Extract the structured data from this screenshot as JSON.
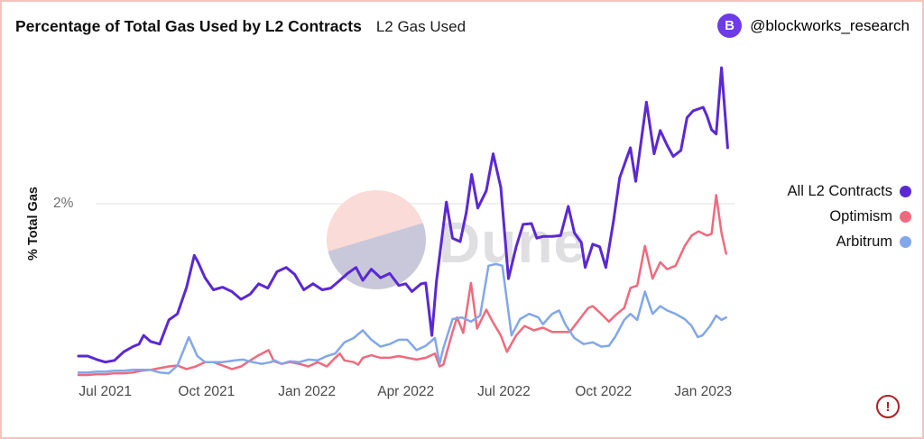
{
  "header": {
    "title": "Percentage of Total Gas Used by L2 Contracts",
    "subtitle": "L2 Gas Used",
    "attribution": {
      "handle": "@blockworks_research",
      "avatar_letter": "B"
    }
  },
  "watermark": {
    "text": "Dune"
  },
  "footer": {
    "warning_glyph": "!"
  },
  "colors": {
    "all_l2": "#5b28d4",
    "optimism": "#f06a7d",
    "arbitrum": "#82a7ea",
    "grid": "#ececec",
    "border": "#f5c3bd",
    "avatar": "#6d3be8",
    "warning": "#ab1f24",
    "watermark_pink": "#fadbd7",
    "watermark_lavender": "#c9c8da",
    "watermark_text": "#c9c9cd"
  },
  "chart_data": {
    "type": "line",
    "title": "Percentage of Total Gas Used by L2 Contracts",
    "subtitle": "L2 Gas Used",
    "ylabel": "% Total Gas",
    "x_unit": "weeks (Jun 2021 - Jan 2023)",
    "xlim_weeks": [
      0,
      85
    ],
    "ylim": [
      0,
      3.8
    ],
    "grid": "single horizontal gridline at 2%",
    "legend_position": "right",
    "y_ticks": [
      {
        "value": 2,
        "label": "2%"
      }
    ],
    "x_ticks": [
      {
        "label": "Jul 2021",
        "week": 3.5
      },
      {
        "label": "Oct 2021",
        "week": 16.7
      },
      {
        "label": "Jan 2022",
        "week": 29.8
      },
      {
        "label": "Apr 2022",
        "week": 42.7
      },
      {
        "label": "Jul 2022",
        "week": 55.5
      },
      {
        "label": "Oct 2022",
        "week": 68.5
      },
      {
        "label": "Jan 2023",
        "week": 81.5
      }
    ],
    "series": [
      {
        "name": "All L2 Contracts",
        "color": "#5b28d4",
        "points": [
          [
            0,
            0.23
          ],
          [
            1.2,
            0.23
          ],
          [
            2.4,
            0.19
          ],
          [
            3.5,
            0.16
          ],
          [
            4.7,
            0.18
          ],
          [
            5.9,
            0.28
          ],
          [
            7.1,
            0.34
          ],
          [
            7.9,
            0.37
          ],
          [
            8.5,
            0.47
          ],
          [
            9.4,
            0.4
          ],
          [
            10.6,
            0.37
          ],
          [
            11.8,
            0.65
          ],
          [
            12.9,
            0.72
          ],
          [
            14.1,
            1.03
          ],
          [
            15.1,
            1.4
          ],
          [
            15.6,
            1.32
          ],
          [
            16.5,
            1.14
          ],
          [
            17.6,
            1.0
          ],
          [
            18.8,
            1.03
          ],
          [
            20,
            0.98
          ],
          [
            21.2,
            0.89
          ],
          [
            22.4,
            0.95
          ],
          [
            23.5,
            1.07
          ],
          [
            24.7,
            1.02
          ],
          [
            25.9,
            1.21
          ],
          [
            27.1,
            1.26
          ],
          [
            28.2,
            1.18
          ],
          [
            29.4,
            1.0
          ],
          [
            30.6,
            1.07
          ],
          [
            31.8,
            1.0
          ],
          [
            32.9,
            1.02
          ],
          [
            34.1,
            1.11
          ],
          [
            35.1,
            1.19
          ],
          [
            36.2,
            1.26
          ],
          [
            37.1,
            1.11
          ],
          [
            38.2,
            1.24
          ],
          [
            39.4,
            1.14
          ],
          [
            40.6,
            1.19
          ],
          [
            41.8,
            1.05
          ],
          [
            42.7,
            1.07
          ],
          [
            43.5,
            0.98
          ],
          [
            44.7,
            1.07
          ],
          [
            45.3,
            1.08
          ],
          [
            46.1,
            0.47
          ],
          [
            46.7,
            1.1
          ],
          [
            48,
            2.02
          ],
          [
            48.8,
            1.6
          ],
          [
            49.8,
            1.56
          ],
          [
            50.6,
            1.9
          ],
          [
            51.3,
            2.34
          ],
          [
            52.1,
            1.95
          ],
          [
            53.2,
            2.15
          ],
          [
            54.1,
            2.58
          ],
          [
            55.1,
            2.19
          ],
          [
            56.1,
            1.13
          ],
          [
            57.1,
            1.5
          ],
          [
            58,
            1.76
          ],
          [
            59.1,
            1.77
          ],
          [
            59.8,
            1.6
          ],
          [
            60.6,
            1.62
          ],
          [
            61.8,
            1.62
          ],
          [
            62.9,
            1.63
          ],
          [
            63.9,
            1.97
          ],
          [
            64.7,
            1.66
          ],
          [
            65.6,
            1.55
          ],
          [
            66.1,
            1.26
          ],
          [
            67.1,
            1.53
          ],
          [
            68,
            1.5
          ],
          [
            68.8,
            1.26
          ],
          [
            69.8,
            1.8
          ],
          [
            70.6,
            2.3
          ],
          [
            72,
            2.65
          ],
          [
            72.7,
            2.26
          ],
          [
            74.1,
            3.18
          ],
          [
            75.1,
            2.58
          ],
          [
            75.9,
            2.85
          ],
          [
            76.8,
            2.68
          ],
          [
            77.6,
            2.55
          ],
          [
            78.6,
            2.62
          ],
          [
            79.4,
            3.0
          ],
          [
            80.2,
            3.08
          ],
          [
            81.5,
            3.12
          ],
          [
            82,
            3.02
          ],
          [
            82.6,
            2.86
          ],
          [
            83.2,
            2.81
          ],
          [
            83.9,
            3.58
          ],
          [
            84.7,
            2.65
          ]
        ]
      },
      {
        "name": "Optimism",
        "color": "#f06a7d",
        "points": [
          [
            0,
            0.01
          ],
          [
            1.2,
            0.01
          ],
          [
            2.4,
            0.02
          ],
          [
            3.5,
            0.02
          ],
          [
            4.7,
            0.03
          ],
          [
            5.9,
            0.03
          ],
          [
            7.1,
            0.04
          ],
          [
            8.2,
            0.06
          ],
          [
            9.4,
            0.07
          ],
          [
            10.6,
            0.09
          ],
          [
            11.8,
            0.11
          ],
          [
            12.9,
            0.12
          ],
          [
            14.1,
            0.08
          ],
          [
            15.3,
            0.11
          ],
          [
            16.5,
            0.16
          ],
          [
            17.6,
            0.16
          ],
          [
            18.8,
            0.12
          ],
          [
            20,
            0.08
          ],
          [
            21.2,
            0.11
          ],
          [
            22.4,
            0.18
          ],
          [
            23.5,
            0.24
          ],
          [
            24.8,
            0.3
          ],
          [
            25.5,
            0.17
          ],
          [
            26.5,
            0.14
          ],
          [
            27.6,
            0.16
          ],
          [
            28.8,
            0.14
          ],
          [
            30,
            0.11
          ],
          [
            31.2,
            0.16
          ],
          [
            32.4,
            0.11
          ],
          [
            33.5,
            0.21
          ],
          [
            34.1,
            0.26
          ],
          [
            34.7,
            0.18
          ],
          [
            35.9,
            0.16
          ],
          [
            36.5,
            0.13
          ],
          [
            37.1,
            0.21
          ],
          [
            38.2,
            0.24
          ],
          [
            39.4,
            0.21
          ],
          [
            40.6,
            0.21
          ],
          [
            41.8,
            0.23
          ],
          [
            42.9,
            0.21
          ],
          [
            44.1,
            0.19
          ],
          [
            45.3,
            0.21
          ],
          [
            46.5,
            0.26
          ],
          [
            47.1,
            0.11
          ],
          [
            47.6,
            0.13
          ],
          [
            48.8,
            0.51
          ],
          [
            49.4,
            0.68
          ],
          [
            50.2,
            0.5
          ],
          [
            51.2,
            1.08
          ],
          [
            52,
            0.55
          ],
          [
            53.2,
            0.77
          ],
          [
            54.1,
            0.62
          ],
          [
            55.1,
            0.47
          ],
          [
            55.9,
            0.28
          ],
          [
            57.1,
            0.47
          ],
          [
            58.2,
            0.58
          ],
          [
            59.4,
            0.53
          ],
          [
            60.6,
            0.56
          ],
          [
            61.8,
            0.51
          ],
          [
            62.9,
            0.51
          ],
          [
            64.1,
            0.51
          ],
          [
            65.3,
            0.65
          ],
          [
            66.5,
            0.79
          ],
          [
            67.1,
            0.81
          ],
          [
            68.2,
            0.72
          ],
          [
            69.2,
            0.63
          ],
          [
            70,
            0.7
          ],
          [
            71.2,
            0.79
          ],
          [
            72,
            1.02
          ],
          [
            72.9,
            1.05
          ],
          [
            73.9,
            1.51
          ],
          [
            74.9,
            1.13
          ],
          [
            75.9,
            1.32
          ],
          [
            76.8,
            1.24
          ],
          [
            77.9,
            1.28
          ],
          [
            79.1,
            1.51
          ],
          [
            80,
            1.63
          ],
          [
            80.9,
            1.68
          ],
          [
            82,
            1.63
          ],
          [
            82.6,
            1.65
          ],
          [
            83.2,
            2.1
          ],
          [
            83.9,
            1.66
          ],
          [
            84.5,
            1.42
          ]
        ]
      },
      {
        "name": "Arbitrum",
        "color": "#82a7ea",
        "points": [
          [
            0,
            0.04
          ],
          [
            1.2,
            0.04
          ],
          [
            2.4,
            0.05
          ],
          [
            3.5,
            0.05
          ],
          [
            4.7,
            0.06
          ],
          [
            5.9,
            0.06
          ],
          [
            7.1,
            0.07
          ],
          [
            8.2,
            0.07
          ],
          [
            9.4,
            0.07
          ],
          [
            10.6,
            0.04
          ],
          [
            11.8,
            0.03
          ],
          [
            12.9,
            0.12
          ],
          [
            14.4,
            0.45
          ],
          [
            15.5,
            0.23
          ],
          [
            16.5,
            0.16
          ],
          [
            17.6,
            0.16
          ],
          [
            18.8,
            0.16
          ],
          [
            20.4,
            0.18
          ],
          [
            21.5,
            0.19
          ],
          [
            22.7,
            0.16
          ],
          [
            23.9,
            0.14
          ],
          [
            25.1,
            0.16
          ],
          [
            25.6,
            0.18
          ],
          [
            26.5,
            0.14
          ],
          [
            27.6,
            0.17
          ],
          [
            28.8,
            0.16
          ],
          [
            30,
            0.19
          ],
          [
            31.2,
            0.18
          ],
          [
            32.4,
            0.23
          ],
          [
            33.5,
            0.26
          ],
          [
            34.7,
            0.39
          ],
          [
            35.9,
            0.44
          ],
          [
            37.1,
            0.53
          ],
          [
            38.2,
            0.42
          ],
          [
            39.4,
            0.34
          ],
          [
            40.6,
            0.37
          ],
          [
            41.8,
            0.42
          ],
          [
            42.9,
            0.42
          ],
          [
            44.1,
            0.3
          ],
          [
            45.3,
            0.35
          ],
          [
            46.5,
            0.44
          ],
          [
            47.1,
            0.14
          ],
          [
            47.6,
            0.32
          ],
          [
            48.8,
            0.66
          ],
          [
            50,
            0.68
          ],
          [
            51.2,
            0.63
          ],
          [
            52.4,
            0.7
          ],
          [
            53.5,
            1.28
          ],
          [
            54.5,
            1.3
          ],
          [
            55.3,
            1.28
          ],
          [
            56.5,
            0.47
          ],
          [
            57.6,
            0.66
          ],
          [
            58.8,
            0.72
          ],
          [
            60,
            0.68
          ],
          [
            60.6,
            0.6
          ],
          [
            61.8,
            0.72
          ],
          [
            62.7,
            0.76
          ],
          [
            63.5,
            0.6
          ],
          [
            64.7,
            0.44
          ],
          [
            65.9,
            0.37
          ],
          [
            67.1,
            0.39
          ],
          [
            68.2,
            0.34
          ],
          [
            69.2,
            0.35
          ],
          [
            70,
            0.45
          ],
          [
            71.2,
            0.65
          ],
          [
            72,
            0.72
          ],
          [
            72.9,
            0.65
          ],
          [
            73.9,
            0.98
          ],
          [
            74.9,
            0.72
          ],
          [
            75.9,
            0.81
          ],
          [
            76.8,
            0.76
          ],
          [
            77.9,
            0.72
          ],
          [
            79.1,
            0.66
          ],
          [
            80,
            0.58
          ],
          [
            80.8,
            0.45
          ],
          [
            81.4,
            0.47
          ],
          [
            82.4,
            0.58
          ],
          [
            83.2,
            0.7
          ],
          [
            83.9,
            0.65
          ],
          [
            84.5,
            0.68
          ]
        ]
      }
    ]
  }
}
